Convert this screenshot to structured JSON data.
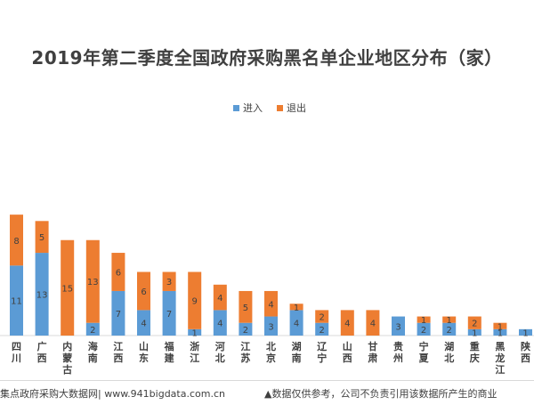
{
  "title": "2019年第二季度全国政府采购黑名单企业地区分布（家）",
  "legend": {
    "enter_label": "进入",
    "exit_label": "退出"
  },
  "colors": {
    "enter": "#5b9bd5",
    "exit": "#ed7d31",
    "label": "#404040"
  },
  "footer": {
    "source": "集点政府采购大数据网| www.941bigdata.com.cn",
    "disclaimer": "▲数据仅供参考，公司不负责引用该数据所产生的商业"
  },
  "chart_data": {
    "type": "bar",
    "stacked": true,
    "title": "2019年第二季度全国政府采购黑名单企业地区分布（家）",
    "legend_position": "top",
    "grid": false,
    "categories": [
      "四川",
      "广西",
      "内蒙古",
      "海南",
      "江西",
      "山东",
      "福建",
      "浙江",
      "河北",
      "江苏",
      "北京",
      "湖南",
      "辽宁",
      "山西",
      "甘肃",
      "贵州",
      "宁夏",
      "湖北",
      "重庆",
      "黑龙江",
      "陕西"
    ],
    "series": [
      {
        "name": "进入",
        "color": "#5b9bd5",
        "values": [
          11,
          13,
          0,
          2,
          7,
          4,
          7,
          1,
          4,
          2,
          3,
          4,
          2,
          0,
          0,
          3,
          2,
          2,
          1,
          1,
          1
        ]
      },
      {
        "name": "退出",
        "color": "#ed7d31",
        "values": [
          8,
          5,
          15,
          13,
          6,
          6,
          3,
          9,
          4,
          5,
          4,
          1,
          2,
          4,
          4,
          0,
          1,
          1,
          2,
          1,
          0
        ]
      }
    ],
    "ylim": [
      0,
      20
    ]
  }
}
